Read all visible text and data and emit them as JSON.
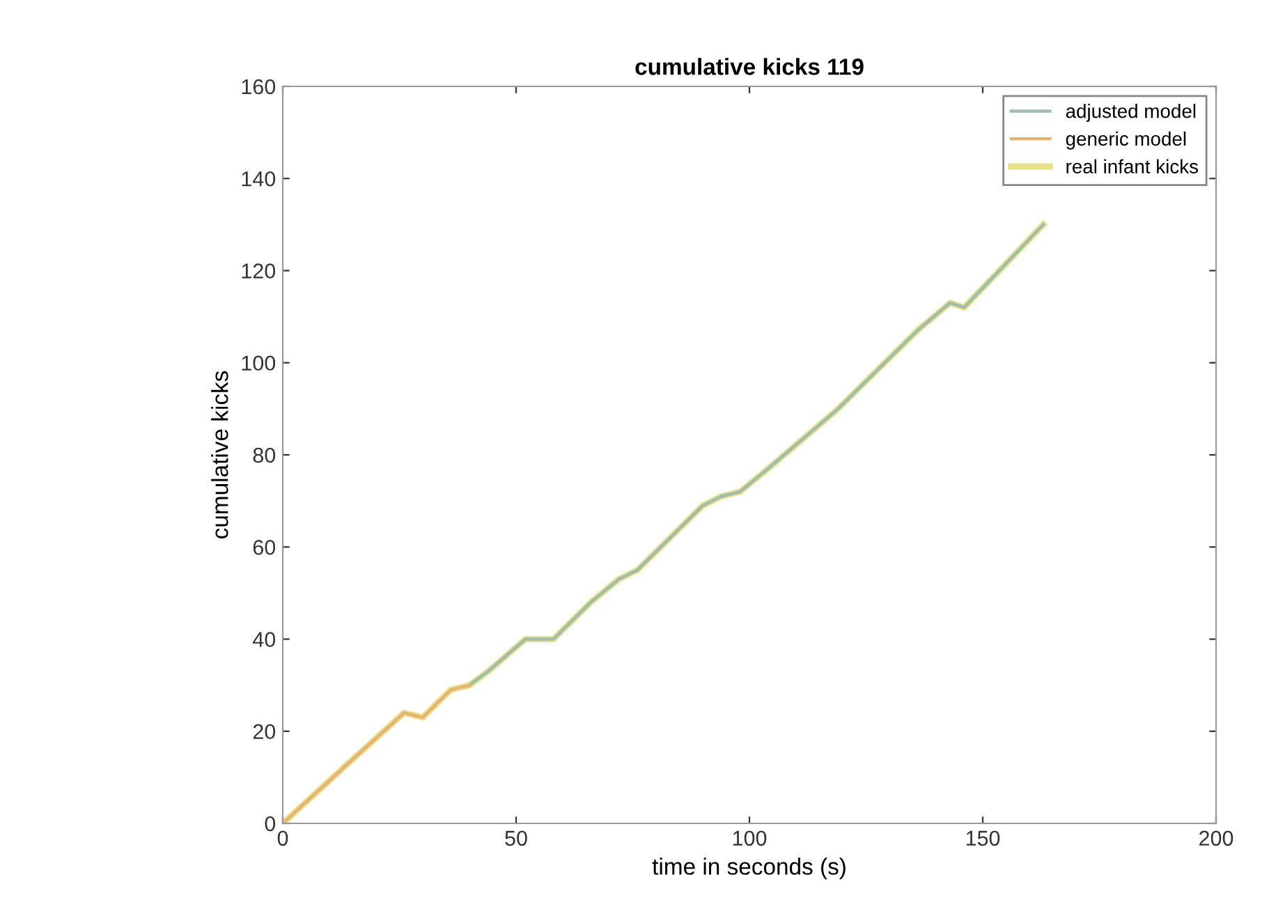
{
  "chart_data": {
    "type": "line",
    "title": "cumulative kicks 119",
    "xlabel": "time in seconds (s)",
    "ylabel": "cumulative kicks",
    "xlim": [
      0,
      200
    ],
    "ylim": [
      0,
      160
    ],
    "xticks": [
      0,
      50,
      100,
      150,
      200
    ],
    "yticks": [
      0,
      20,
      40,
      60,
      80,
      100,
      120,
      140,
      160
    ],
    "grid": false,
    "legend": "top right",
    "line_style": "solid",
    "series": [
      {
        "name": "real infant kicks",
        "color": "#e6e08a",
        "x": [
          0,
          14,
          26,
          30,
          36,
          40,
          44,
          52,
          58,
          66,
          72,
          76,
          90,
          94,
          98,
          104,
          119,
          136,
          143,
          146,
          163
        ],
        "values": [
          0,
          13,
          24,
          23,
          29,
          30,
          33,
          40,
          40,
          48,
          53,
          55,
          69,
          71,
          72,
          77,
          90,
          107,
          113,
          112,
          130
        ]
      },
      {
        "name": "adjusted model",
        "color": "#9fbcae",
        "x": [
          40,
          44,
          52,
          58,
          66,
          72,
          76,
          90,
          94,
          98,
          104,
          119,
          136,
          143,
          146,
          163
        ],
        "values": [
          30,
          33,
          40,
          40,
          48,
          53,
          55,
          69,
          71,
          72,
          77,
          90,
          107,
          113,
          112,
          130
        ]
      },
      {
        "name": "generic model",
        "color": "#e8b274",
        "x": [
          0,
          14,
          26,
          30,
          36,
          40
        ],
        "values": [
          0,
          13,
          24,
          23,
          29,
          30
        ]
      }
    ]
  }
}
